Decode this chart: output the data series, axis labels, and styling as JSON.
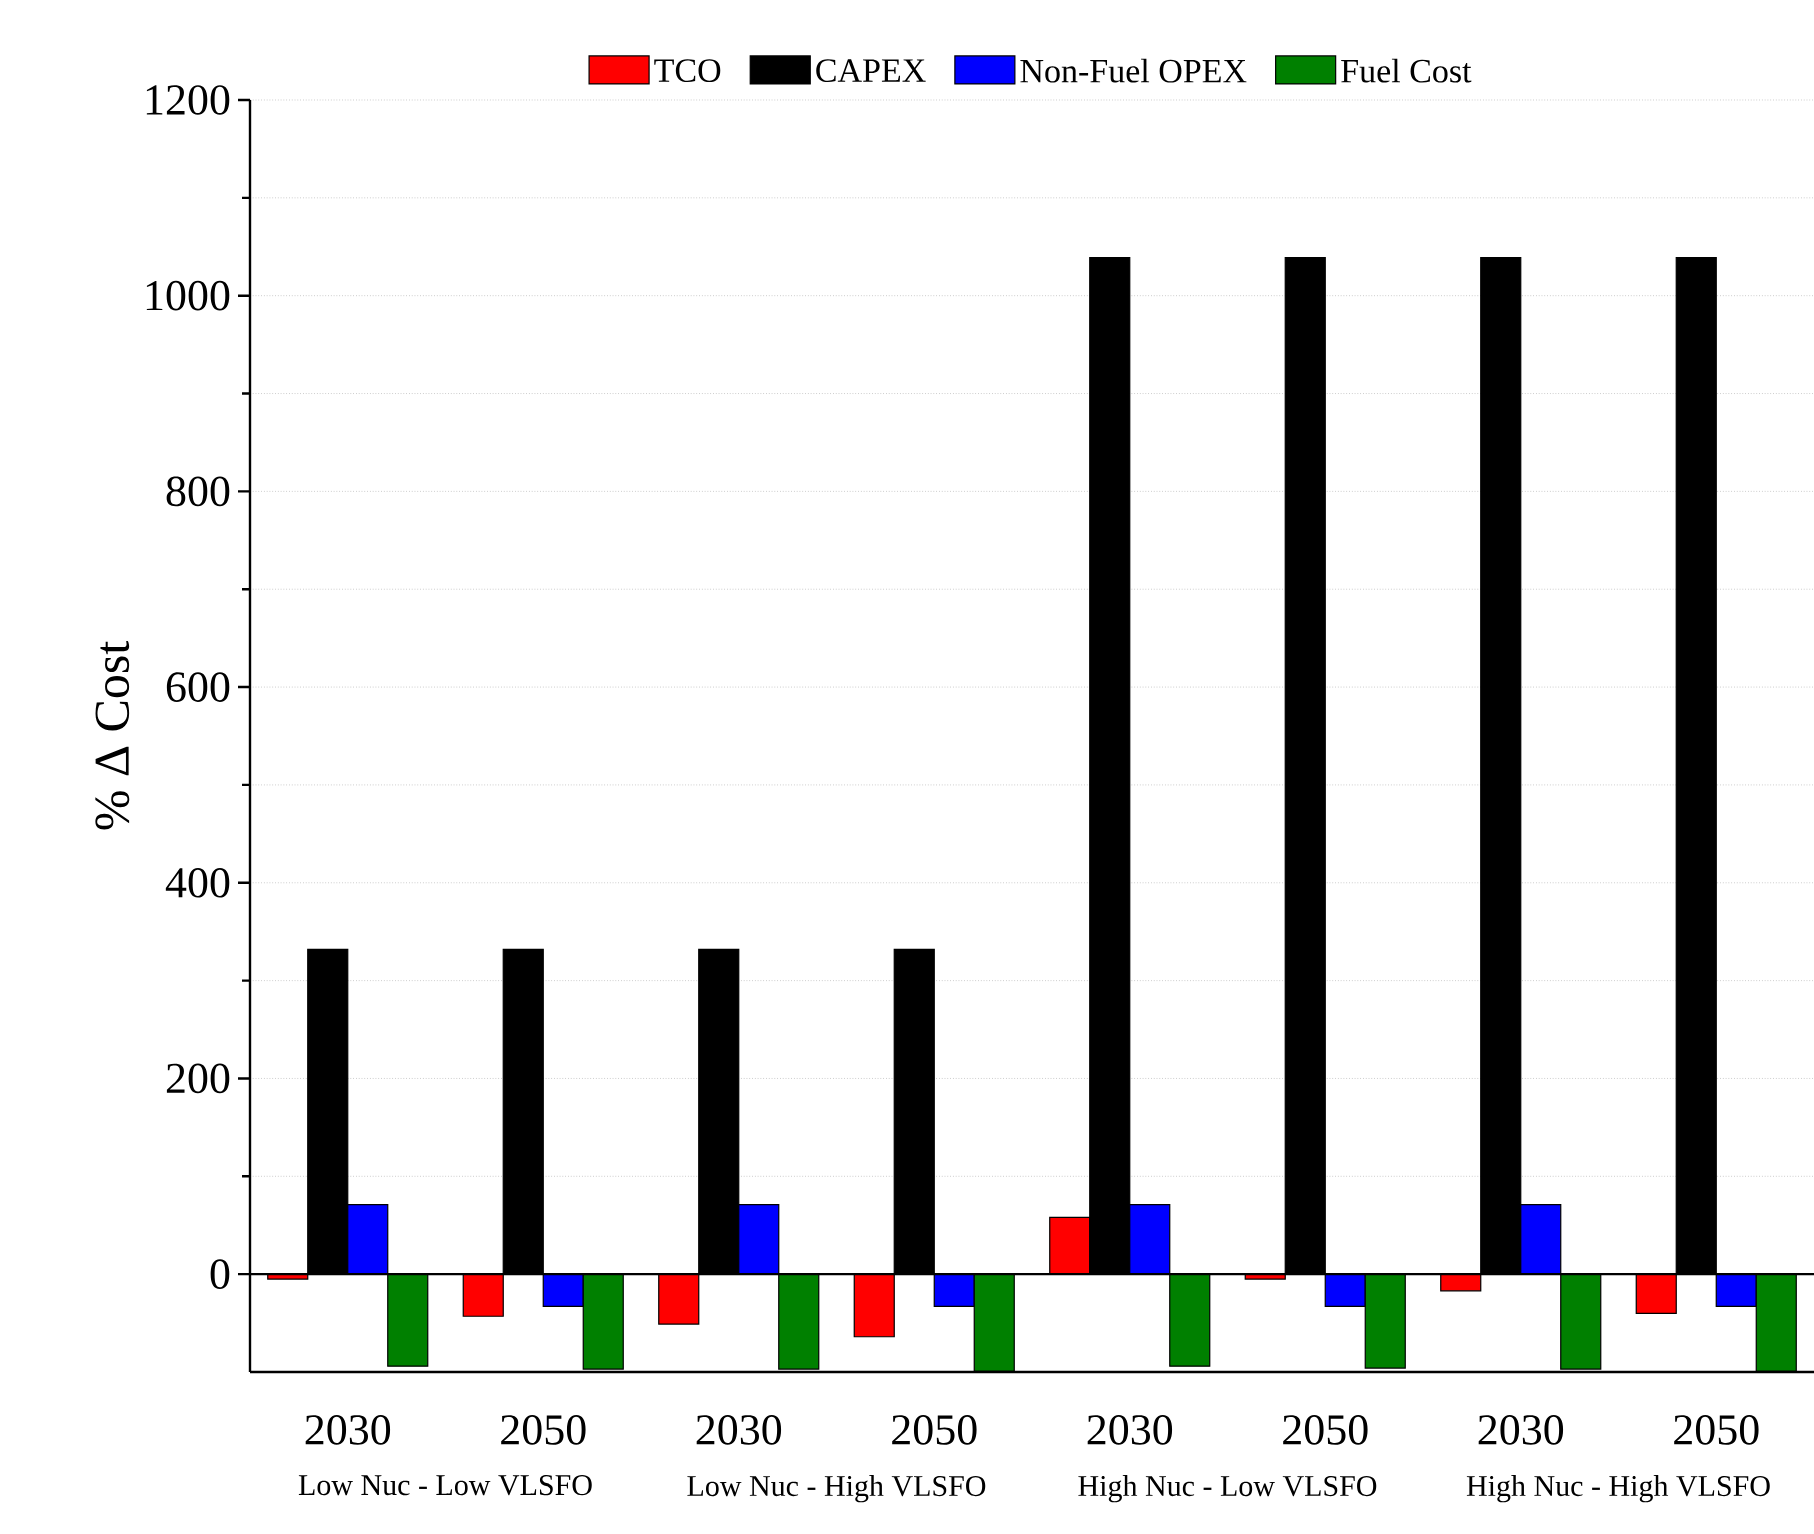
{
  "chart_data": {
    "type": "bar",
    "ylabel": "% Δ Cost",
    "categories": [
      "2030",
      "2050",
      "2030",
      "2050",
      "2030",
      "2050",
      "2030",
      "2050"
    ],
    "series": [
      {
        "name": "TCO",
        "color": "#ff0000",
        "values": [
          -5,
          -43,
          -51,
          -64,
          58,
          -5,
          -17,
          -40
        ]
      },
      {
        "name": "CAPEX",
        "color": "#000000",
        "values": [
          332,
          332,
          332,
          332,
          1039,
          1039,
          1039,
          1039
        ]
      },
      {
        "name": "Non-Fuel OPEX",
        "color": "#0000ff",
        "values": [
          71,
          -33,
          71,
          -33,
          71,
          -33,
          71,
          -33
        ]
      },
      {
        "name": "Fuel Cost",
        "color": "#008000",
        "values": [
          -94,
          -97,
          -97,
          -99,
          -94,
          -96,
          -97,
          -99
        ]
      }
    ],
    "ylim": [
      -100,
      1200
    ],
    "yticks": [
      0,
      200,
      400,
      600,
      800,
      1000,
      1200
    ],
    "grid": "y",
    "legend": "top",
    "ref_lines": [
      {
        "axis": "y",
        "value": 0,
        "color": "#000000"
      }
    ],
    "annotations": [
      "Low Nuc - Low VLSFO",
      "Low Nuc - High VLSFO",
      "High Nuc - Low VLSFO",
      "High Nuc - High VLSFO"
    ]
  }
}
